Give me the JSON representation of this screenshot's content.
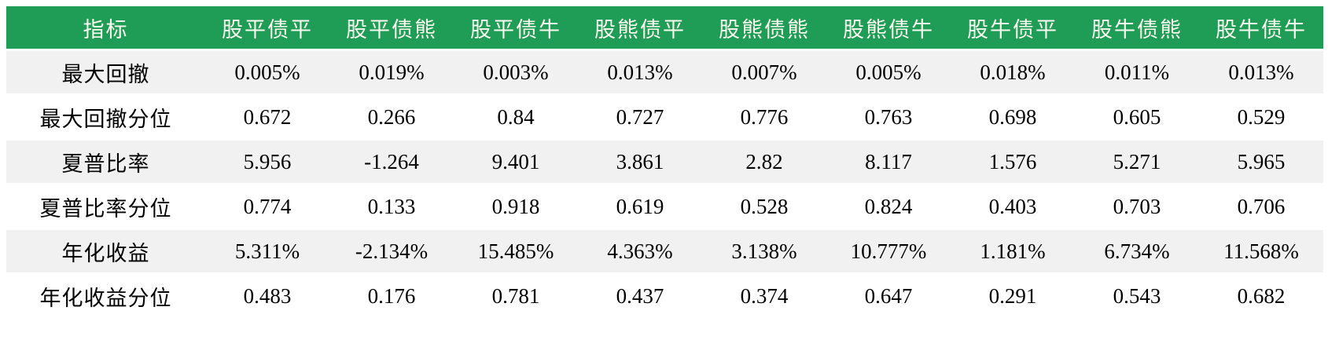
{
  "chart_data": {
    "type": "table",
    "title": "",
    "columns": [
      "指标",
      "股平债平",
      "股平债熊",
      "股平债牛",
      "股熊债平",
      "股熊债熊",
      "股熊债牛",
      "股牛债平",
      "股牛债熊",
      "股牛债牛"
    ],
    "rows": [
      {
        "label": "最大回撤",
        "values": [
          "0.005%",
          "0.019%",
          "0.003%",
          "0.013%",
          "0.007%",
          "0.005%",
          "0.018%",
          "0.011%",
          "0.013%"
        ]
      },
      {
        "label": "最大回撤分位",
        "values": [
          "0.672",
          "0.266",
          "0.84",
          "0.727",
          "0.776",
          "0.763",
          "0.698",
          "0.605",
          "0.529"
        ]
      },
      {
        "label": "夏普比率",
        "values": [
          "5.956",
          "-1.264",
          "9.401",
          "3.861",
          "2.82",
          "8.117",
          "1.576",
          "5.271",
          "5.965"
        ]
      },
      {
        "label": "夏普比率分位",
        "values": [
          "0.774",
          "0.133",
          "0.918",
          "0.619",
          "0.528",
          "0.824",
          "0.403",
          "0.703",
          "0.706"
        ]
      },
      {
        "label": "年化收益",
        "values": [
          "5.311%",
          "-2.134%",
          "15.485%",
          "4.363%",
          "3.138%",
          "10.777%",
          "1.181%",
          "6.734%",
          "11.568%"
        ]
      },
      {
        "label": "年化收益分位",
        "values": [
          "0.483",
          "0.176",
          "0.781",
          "0.437",
          "0.374",
          "0.647",
          "0.291",
          "0.543",
          "0.682"
        ]
      }
    ],
    "layout_hints": {
      "header_alignment": "center",
      "cell_alignment": "center",
      "striped_rows": true
    }
  },
  "colors": {
    "header_background": "#1f9c56",
    "header_text": "#fdfcf0",
    "stripe_row_background": "#f1f1f1",
    "plain_row_background": "#ffffff",
    "cell_text": "#000000"
  }
}
